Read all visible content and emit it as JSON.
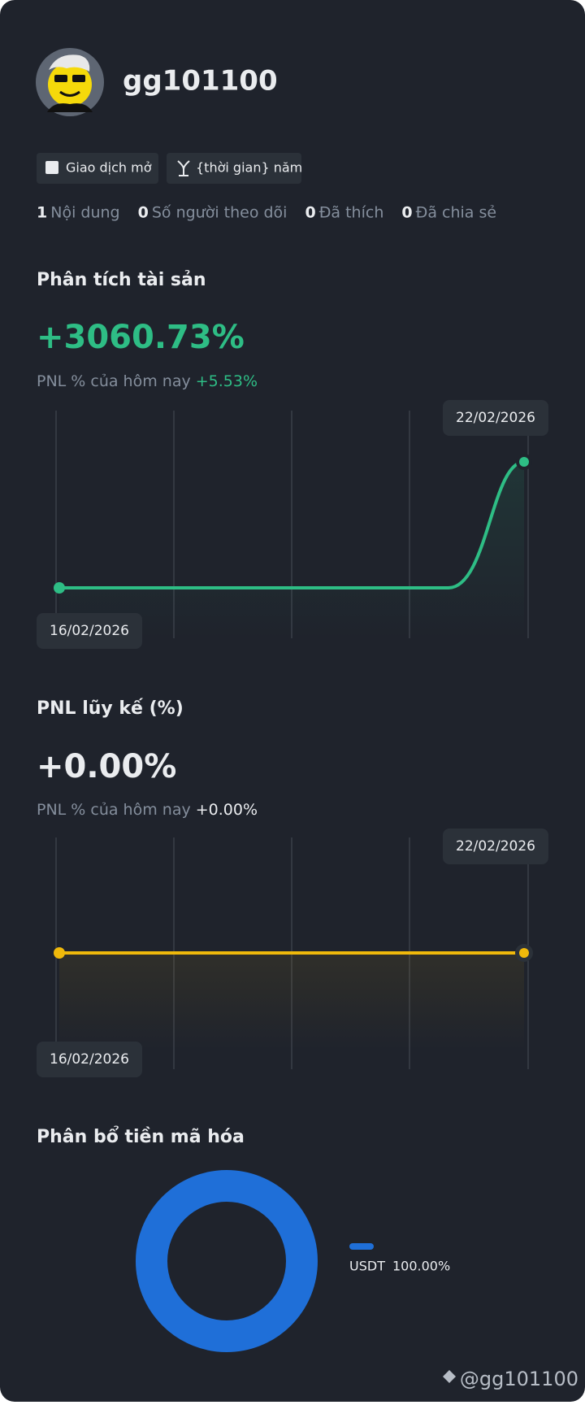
{
  "profile": {
    "username": "gg101100",
    "badges": [
      "Giao dịch mở",
      "{thời gian} năm"
    ],
    "stats": [
      {
        "value": 1,
        "label": "Nội dung"
      },
      {
        "value": 0,
        "label": "Số người theo dõi"
      },
      {
        "value": 0,
        "label": "Đã thích"
      },
      {
        "value": 0,
        "label": "Đã chia sẻ"
      }
    ]
  },
  "asset_analysis": {
    "title": "Phân tích tài sản",
    "value": "+3060.73%",
    "today_label": "PNL % của hôm nay",
    "today_value": "+5.53%",
    "start_date": "16/02/2026",
    "end_date": "22/02/2026"
  },
  "cumulative_pnl": {
    "title": "PNL lũy kế (%)",
    "value": "+0.00%",
    "today_label": "PNL % của hôm nay",
    "today_value": "+0.00%",
    "start_date": "16/02/2026",
    "end_date": "22/02/2026"
  },
  "allocation": {
    "title": "Phân bổ tiền mã hóa",
    "type": "pie",
    "categories": [
      "USDT"
    ],
    "values": [
      100
    ],
    "value_labels": [
      "100.00%"
    ],
    "colors": [
      "#1f6fd8"
    ]
  },
  "footer": "@gg101100"
}
